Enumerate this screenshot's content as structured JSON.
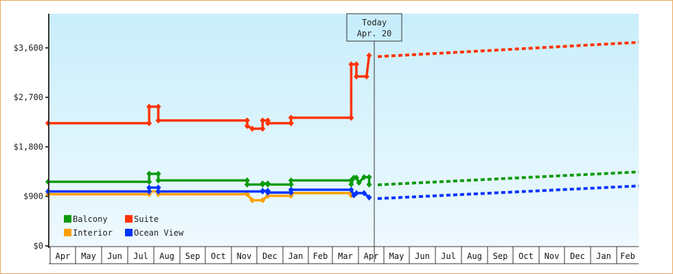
{
  "chart_data": {
    "type": "line",
    "title": "",
    "xlabel": "",
    "ylabel": "",
    "ylim": [
      0,
      4200
    ],
    "y_ticks": [
      {
        "value": 0,
        "label": "$0"
      },
      {
        "value": 900,
        "label": "$900"
      },
      {
        "value": 1800,
        "label": "$1,800"
      },
      {
        "value": 2700,
        "label": "$2,700"
      },
      {
        "value": 3600,
        "label": "$3,600"
      }
    ],
    "x_months": [
      "Apr",
      "May",
      "Jun",
      "Jul",
      "Aug",
      "Sep",
      "Oct",
      "Nov",
      "Dec",
      "Jan",
      "Feb",
      "Mar",
      "Apr",
      "May",
      "Jun",
      "Jul",
      "Aug",
      "Sep",
      "Oct",
      "Nov",
      "Dec",
      "Jan",
      "Feb"
    ],
    "grid": false,
    "legend_position": "lower-left inside",
    "today_marker": {
      "line1": "Today",
      "line2": "Apr. 20",
      "month_index": 12.6
    },
    "series": [
      {
        "name": "Balcony",
        "color": "#0a9a0a",
        "history": [
          [
            0,
            1165
          ],
          [
            3.9,
            1165
          ],
          [
            3.9,
            1310
          ],
          [
            4.25,
            1310
          ],
          [
            4.25,
            1190
          ],
          [
            7.7,
            1190
          ],
          [
            7.7,
            1115
          ],
          [
            8.3,
            1115
          ],
          [
            8.3,
            1135
          ],
          [
            8.5,
            1135
          ],
          [
            8.5,
            1115
          ],
          [
            9.4,
            1115
          ],
          [
            9.4,
            1190
          ],
          [
            11.8,
            1190
          ],
          [
            11.8,
            1120
          ],
          [
            11.9,
            1240
          ],
          [
            12.0,
            1240
          ],
          [
            12.1,
            1150
          ],
          [
            12.3,
            1250
          ],
          [
            12.5,
            1250
          ],
          [
            12.5,
            1115
          ]
        ],
        "forecast": [
          [
            12.6,
            1110
          ],
          [
            22.8,
            1345
          ]
        ]
      },
      {
        "name": "Suite",
        "color": "#ff3300",
        "history": [
          [
            0,
            2230
          ],
          [
            3.9,
            2230
          ],
          [
            3.9,
            2530
          ],
          [
            4.25,
            2530
          ],
          [
            4.25,
            2280
          ],
          [
            7.7,
            2280
          ],
          [
            7.7,
            2180
          ],
          [
            7.9,
            2130
          ],
          [
            8.3,
            2130
          ],
          [
            8.3,
            2280
          ],
          [
            8.5,
            2280
          ],
          [
            8.5,
            2230
          ],
          [
            9.4,
            2230
          ],
          [
            9.4,
            2330
          ],
          [
            11.8,
            2330
          ],
          [
            11.8,
            3300
          ],
          [
            12.0,
            3300
          ],
          [
            12.0,
            3080
          ],
          [
            12.4,
            3080
          ],
          [
            12.5,
            3460
          ]
        ],
        "forecast": [
          [
            12.6,
            3440
          ],
          [
            22.8,
            3700
          ]
        ]
      },
      {
        "name": "Interior",
        "color": "#ffa000",
        "history": [
          [
            0,
            940
          ],
          [
            3.9,
            940
          ],
          [
            3.9,
            990
          ],
          [
            4.25,
            990
          ],
          [
            4.25,
            940
          ],
          [
            7.7,
            940
          ],
          [
            7.9,
            830
          ],
          [
            8.3,
            830
          ],
          [
            8.5,
            910
          ],
          [
            9.4,
            910
          ],
          [
            9.4,
            960
          ],
          [
            11.8,
            960
          ],
          [
            11.8,
            920
          ]
        ],
        "forecast": []
      },
      {
        "name": "Ocean View",
        "color": "#0033ff",
        "history": [
          [
            0,
            990
          ],
          [
            3.9,
            990
          ],
          [
            3.9,
            1060
          ],
          [
            4.25,
            1060
          ],
          [
            4.25,
            990
          ],
          [
            7.7,
            990
          ],
          [
            7.7,
            990
          ],
          [
            8.3,
            990
          ],
          [
            8.3,
            1000
          ],
          [
            8.5,
            1000
          ],
          [
            8.5,
            970
          ],
          [
            9.4,
            970
          ],
          [
            9.4,
            1020
          ],
          [
            11.8,
            1020
          ],
          [
            11.9,
            920
          ],
          [
            12.0,
            960
          ],
          [
            12.3,
            960
          ],
          [
            12.5,
            880
          ]
        ],
        "forecast": [
          [
            12.6,
            860
          ],
          [
            22.8,
            1090
          ]
        ]
      }
    ]
  },
  "legend": {
    "items": [
      {
        "label": "Balcony",
        "color": "#0a9a0a"
      },
      {
        "label": "Suite",
        "color": "#ff3300"
      },
      {
        "label": "Interior",
        "color": "#ffa000"
      },
      {
        "label": "Ocean View",
        "color": "#0033ff"
      }
    ]
  },
  "today": {
    "line1": "Today",
    "line2": "Apr. 20"
  },
  "colors": {
    "frame_border": "#e8a860",
    "plot_top": "#c9eefb",
    "plot_bottom": "#eef9fe",
    "axis": "#333333"
  }
}
